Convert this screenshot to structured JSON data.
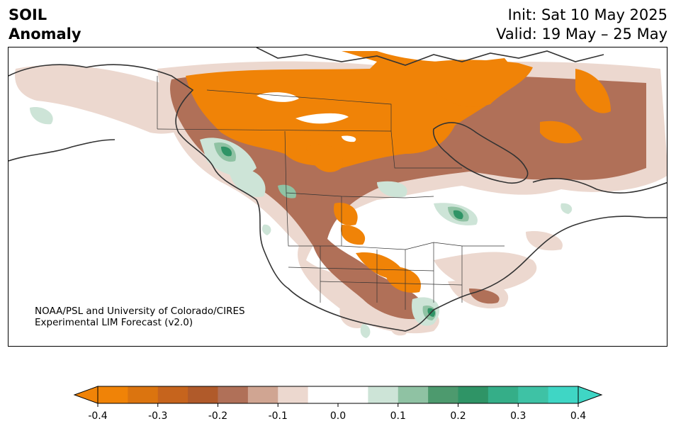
{
  "title": {
    "line1": "SOIL",
    "line2": "Anomaly"
  },
  "dates": {
    "init": "Init: Sat 10 May 2025",
    "valid": "Valid: 19 May – 25 May"
  },
  "credit": {
    "line1": "NOAA/PSL and University of Colorado/CIRES",
    "line2": "Experimental LIM Forecast (v2.0)"
  },
  "colorbar": {
    "ticks": [
      "-0.4",
      "-0.3",
      "-0.2",
      "-0.1",
      "0.0",
      "0.1",
      "0.2",
      "0.3",
      "0.4"
    ],
    "colors": [
      "#f08307",
      "#db740f",
      "#c6641d",
      "#b05a2a",
      "#b07058",
      "#d0a592",
      "#ecd8cf",
      "#ffffff",
      "#ffffff",
      "#cde4d7",
      "#8fc2a3",
      "#4d9a6e",
      "#2f9466",
      "#35ae88",
      "#3ec2a5",
      "#3fd6c5"
    ],
    "extend_left_color": "#f08307",
    "extend_right_color": "#3fd6c5"
  }
}
